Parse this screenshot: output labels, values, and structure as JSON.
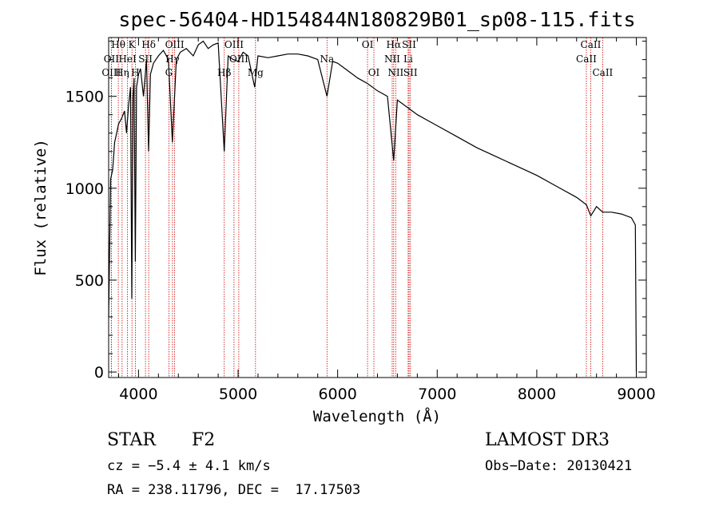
{
  "chart_data": {
    "type": "line",
    "title": "spec-56404-HD154844N180829B01_sp08-115.fits",
    "xlabel": "Wavelength (Å)",
    "ylabel": "Flux (relative)",
    "xlim": [
      3700,
      9100
    ],
    "ylim": [
      -30,
      1820
    ],
    "xticks": [
      4000,
      5000,
      6000,
      7000,
      8000,
      9000
    ],
    "yticks": [
      0,
      500,
      1000,
      1500
    ],
    "spectrum": {
      "name": "flux",
      "x": [
        3700,
        3720,
        3740,
        3760,
        3780,
        3800,
        3830,
        3860,
        3880,
        3900,
        3920,
        3933,
        3945,
        3955,
        3968,
        3980,
        4000,
        4020,
        4050,
        4080,
        4101,
        4120,
        4150,
        4200,
        4250,
        4300,
        4340,
        4380,
        4420,
        4480,
        4550,
        4600,
        4650,
        4700,
        4750,
        4800,
        4861,
        4900,
        4950,
        5000,
        5050,
        5100,
        5167,
        5200,
        5300,
        5400,
        5500,
        5600,
        5700,
        5800,
        5893,
        5950,
        6000,
        6100,
        6200,
        6300,
        6400,
        6500,
        6563,
        6600,
        6700,
        6800,
        6900,
        7000,
        7200,
        7400,
        7600,
        7800,
        8000,
        8200,
        8400,
        8498,
        8542,
        8600,
        8662,
        8750,
        8850,
        8950,
        8990,
        9000
      ],
      "y": [
        300,
        1050,
        1100,
        1250,
        1300,
        1350,
        1380,
        1420,
        1300,
        1450,
        1550,
        400,
        1500,
        1600,
        600,
        1550,
        1620,
        1650,
        1500,
        1700,
        1200,
        1620,
        1680,
        1720,
        1750,
        1700,
        1250,
        1700,
        1740,
        1760,
        1720,
        1780,
        1800,
        1760,
        1780,
        1790,
        1200,
        1720,
        1700,
        1690,
        1740,
        1720,
        1550,
        1720,
        1710,
        1720,
        1730,
        1730,
        1720,
        1700,
        1500,
        1690,
        1680,
        1640,
        1600,
        1570,
        1530,
        1500,
        1150,
        1480,
        1440,
        1400,
        1370,
        1340,
        1280,
        1220,
        1170,
        1120,
        1070,
        1010,
        950,
        910,
        850,
        900,
        870,
        870,
        860,
        840,
        800,
        0
      ]
    },
    "spectral_lines": [
      {
        "name": "Hθ",
        "wavelength": 3797,
        "row": 0
      },
      {
        "name": "OII",
        "wavelength": 3727,
        "row": 1
      },
      {
        "name": "OIII",
        "wavelength": 3727,
        "row": 2
      },
      {
        "name": "K",
        "wavelength": 3934,
        "row": 0
      },
      {
        "name": "HeI",
        "wavelength": 3889,
        "row": 1
      },
      {
        "name": "Hη",
        "wavelength": 3835,
        "row": 2
      },
      {
        "name": "Hδ",
        "wavelength": 4102,
        "row": 0
      },
      {
        "name": "SII",
        "wavelength": 4070,
        "row": 1
      },
      {
        "name": "H",
        "wavelength": 3968,
        "row": 2
      },
      {
        "name": "OIII",
        "wavelength": 4363,
        "row": 0
      },
      {
        "name": "Hγ",
        "wavelength": 4341,
        "row": 1
      },
      {
        "name": "G",
        "wavelength": 4305,
        "row": 2
      },
      {
        "name": "OIII",
        "wavelength": 4959,
        "row": 0
      },
      {
        "name": "OIII",
        "wavelength": 5007,
        "row": 1
      },
      {
        "name": "Hβ",
        "wavelength": 4861,
        "row": 2
      },
      {
        "name": "Mg",
        "wavelength": 5175,
        "row": 2
      },
      {
        "name": "Na",
        "wavelength": 5893,
        "row": 1
      },
      {
        "name": "OI",
        "wavelength": 6300,
        "row": 0
      },
      {
        "name": "OI",
        "wavelength": 6364,
        "row": 2
      },
      {
        "name": "Hα",
        "wavelength": 6563,
        "row": 0
      },
      {
        "name": "SII",
        "wavelength": 6717,
        "row": 0
      },
      {
        "name": "NII",
        "wavelength": 6548,
        "row": 1
      },
      {
        "name": "Li",
        "wavelength": 6708,
        "row": 1
      },
      {
        "name": "NII",
        "wavelength": 6583,
        "row": 2
      },
      {
        "name": "SII",
        "wavelength": 6731,
        "row": 2
      },
      {
        "name": "CaII",
        "wavelength": 8542,
        "row": 0
      },
      {
        "name": "CaII",
        "wavelength": 8498,
        "row": 1
      },
      {
        "name": "CaII",
        "wavelength": 8662,
        "row": 2
      }
    ],
    "line_color": "#cc0000",
    "spectrum_color": "#000000"
  },
  "info": {
    "class_label": "STAR",
    "subclass_label": "F2",
    "survey": "LAMOST DR3",
    "cz": "cz = −5.4 ± 4.1 km/s",
    "obs_date": "Obs−Date: 20130421",
    "coords": "RA = 238.11796, DEC =  17.17503"
  }
}
